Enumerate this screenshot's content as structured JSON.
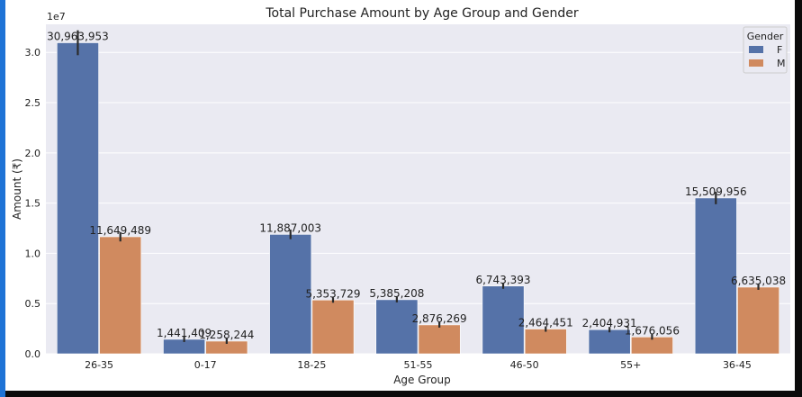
{
  "chart_data": {
    "type": "bar",
    "title": "Total Purchase Amount by Age Group and Gender",
    "xlabel": "Age Group",
    "ylabel": "Amount (₹)",
    "y_scale_label": "1e7",
    "categories": [
      "26-35",
      "0-17",
      "18-25",
      "51-55",
      "46-50",
      "55+",
      "36-45"
    ],
    "series": [
      {
        "name": "F",
        "color": "#5572a8",
        "values": [
          30963953,
          1441409,
          11887003,
          5385208,
          6743393,
          2404931,
          15509956
        ],
        "labels": [
          "30,963,953",
          "1,441,409",
          "11,887,003",
          "5,385,208",
          "6,743,393",
          "2,404,931",
          "15,509,956"
        ]
      },
      {
        "name": "M",
        "color": "#d08a5f",
        "values": [
          11649489,
          1258244,
          5353729,
          2876269,
          2464451,
          1676056,
          6635038
        ],
        "labels": [
          "11,649,489",
          "1,258,244",
          "5,353,729",
          "2,876,269",
          "2,464,451",
          "1,676,056",
          "6,635,038"
        ]
      }
    ],
    "ylim": [
      0,
      32800000
    ],
    "yticks": [
      0,
      5000000,
      10000000,
      15000000,
      20000000,
      25000000,
      30000000
    ],
    "ytick_labels": [
      "0.0",
      "0.5",
      "1.0",
      "1.5",
      "2.0",
      "2.5",
      "3.0"
    ],
    "grid": true,
    "legend": {
      "title": "Gender",
      "placement": "top-right"
    },
    "plot_background": "#eaeaf2"
  }
}
